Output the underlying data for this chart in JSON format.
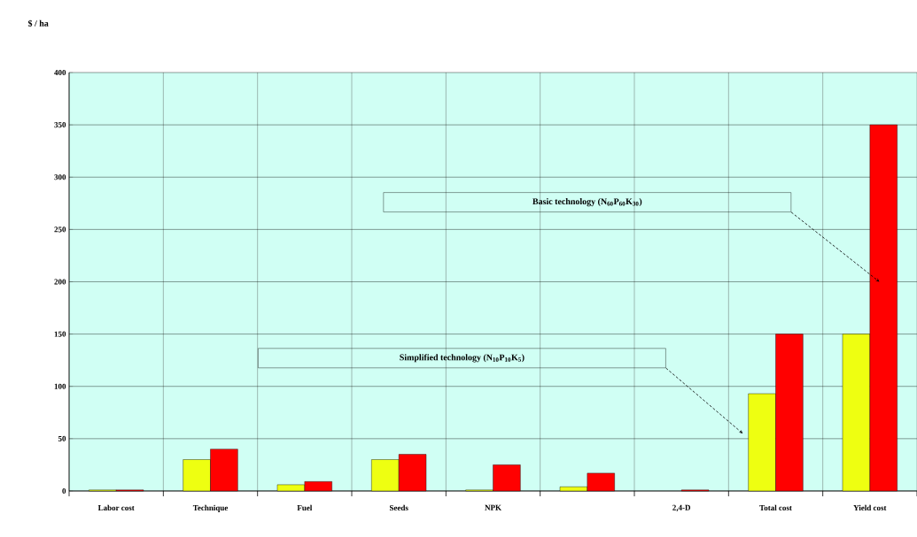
{
  "chart_data": {
    "type": "bar",
    "ylabel": "$ / ha",
    "categories": [
      "Labor cost",
      "Technique",
      "Fuel",
      "Seeds",
      "NPK",
      null,
      "2,4-D",
      "Total cost",
      "Yield cost"
    ],
    "series": [
      {
        "color": "#eeff11",
        "values": [
          1,
          30,
          6,
          30,
          1,
          4,
          null,
          93,
          150
        ]
      },
      {
        "color": "#ff0000",
        "values": [
          1,
          40,
          9,
          35,
          25,
          17,
          1,
          150,
          350
        ]
      }
    ],
    "ylim": [
      0,
      400
    ],
    "yticks": [
      0,
      50,
      100,
      150,
      200,
      250,
      300,
      350,
      400
    ],
    "grid": true,
    "annotations": [
      "Basic technology  (N$_{60}$P$_{60}$K$_{30}$)",
      "Simplified technology (N$_{10}$P$_{10}$K$_{5}$)"
    ]
  }
}
